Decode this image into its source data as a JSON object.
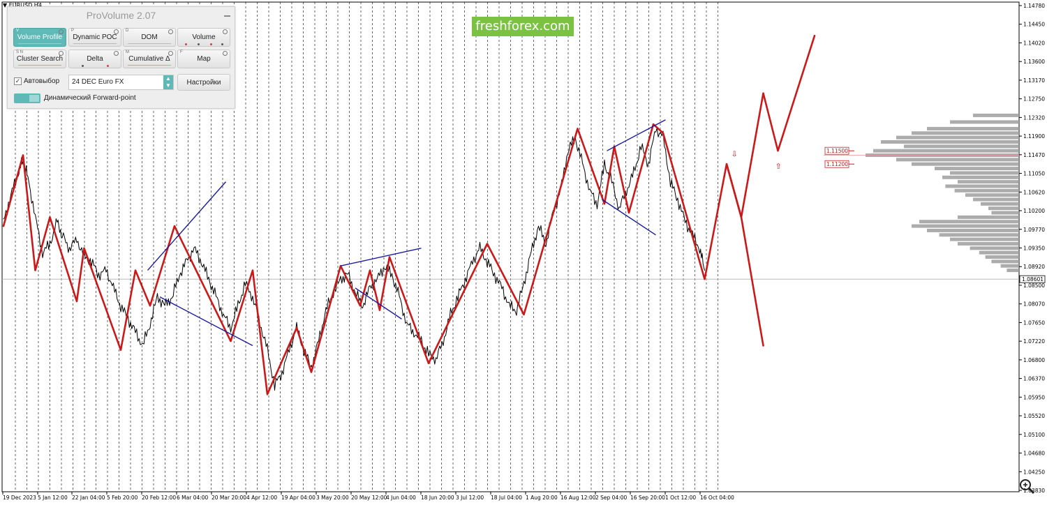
{
  "window": {
    "symbol_label": "▼ EURUSD,H4"
  },
  "brand": {
    "text": "freshforex.com",
    "color": "#7cc242"
  },
  "panel": {
    "title": "ProVolume 2.07",
    "buttons": [
      {
        "label": "Volume Profile",
        "hotkey": "V",
        "active": true
      },
      {
        "label": "Dynamic POC",
        "hotkey": "P",
        "active": false
      },
      {
        "label": "DOM",
        "hotkey": "D",
        "active": false
      },
      {
        "label": "Volume",
        "hotkey": "",
        "active": false
      },
      {
        "label": "Cluster Search",
        "hotkey": "S N",
        "active": false
      },
      {
        "label": "Delta",
        "hotkey": "",
        "active": false
      },
      {
        "label": "Cumulative Δ",
        "hotkey": "M",
        "active": false
      },
      {
        "label": "Map",
        "hotkey": "F",
        "active": false
      }
    ],
    "autoselect_label": "Автовыбор",
    "autoselect_checked": true,
    "contract_value": "24 DEC Euro FX",
    "settings_label": "Настройки",
    "forward_point_label": "Динамический Forward-point",
    "accent_color": "#5fb9b6"
  },
  "chart_data": {
    "type": "line",
    "symbol": "EURUSD",
    "timeframe": "H4",
    "title": "",
    "xlabel": "",
    "ylabel": "",
    "ylim": [
      1.0363,
      1.1478
    ],
    "y_ticks": [
      "1.14780",
      "1.14450",
      "1.14020",
      "1.13600",
      "1.13170",
      "1.12750",
      "1.12320",
      "1.11900",
      "1.11470",
      "1.11050",
      "1.10620",
      "1.10200",
      "1.09770",
      "1.09350",
      "1.08920",
      "1.08500",
      "1.08070",
      "1.07650",
      "1.07220",
      "1.06800",
      "1.06370",
      "1.05950",
      "1.05520",
      "1.05100",
      "1.04680",
      "1.04250",
      "1.03830"
    ],
    "x_ticks": [
      "19 Dec 2023",
      "5 Jan 12:00",
      "22 Jan 04:00",
      "5 Feb 20:00",
      "20 Feb 12:00",
      "6 Mar 04:00",
      "20 Mar 20:00",
      "4 Apr 12:00",
      "19 Apr 04:00",
      "3 May 20:00",
      "20 May 12:00",
      "4 Jun 04:00",
      "18 Jun 20:00",
      "3 Jul 12:00",
      "18 Jul 04:00",
      "1 Aug 20:00",
      "16 Aug 12:00",
      "2 Sep 04:00",
      "16 Sep 20:00",
      "1 Oct 12:00",
      "16 Oct 04:00"
    ],
    "current_price": "1.08601",
    "price_levels": [
      "1.11500",
      "1.11200"
    ],
    "grid": "vertical dashed",
    "series": [
      {
        "role": "price",
        "color": "#000000",
        "points": [
          [
            0,
            1.099
          ],
          [
            3,
            1.105
          ],
          [
            6,
            1.11
          ],
          [
            8,
            1.113
          ],
          [
            10,
            1.109
          ],
          [
            13,
            1.1
          ],
          [
            16,
            1.092
          ],
          [
            19,
            1.094
          ],
          [
            22,
            1.099
          ],
          [
            24,
            1.096
          ],
          [
            27,
            1.093
          ],
          [
            30,
            1.095
          ],
          [
            33,
            1.091
          ],
          [
            36,
            1.09
          ],
          [
            39,
            1.087
          ],
          [
            42,
            1.088
          ],
          [
            45,
            1.084
          ],
          [
            48,
            1.08
          ],
          [
            51,
            1.077
          ],
          [
            54,
            1.074
          ],
          [
            57,
            1.071
          ],
          [
            60,
            1.076
          ],
          [
            63,
            1.082
          ],
          [
            66,
            1.08
          ],
          [
            69,
            1.082
          ],
          [
            72,
            1.087
          ],
          [
            75,
            1.09
          ],
          [
            78,
            1.093
          ],
          [
            81,
            1.09
          ],
          [
            84,
            1.086
          ],
          [
            87,
            1.082
          ],
          [
            90,
            1.078
          ],
          [
            93,
            1.075
          ],
          [
            96,
            1.08
          ],
          [
            99,
            1.085
          ],
          [
            102,
            1.082
          ],
          [
            105,
            1.076
          ],
          [
            108,
            1.07
          ],
          [
            111,
            1.062
          ],
          [
            114,
            1.065
          ],
          [
            117,
            1.07
          ],
          [
            120,
            1.075
          ],
          [
            123,
            1.07
          ],
          [
            126,
            1.066
          ],
          [
            129,
            1.072
          ],
          [
            132,
            1.079
          ],
          [
            135,
            1.083
          ],
          [
            138,
            1.086
          ],
          [
            141,
            1.087
          ],
          [
            144,
            1.083
          ],
          [
            147,
            1.08
          ],
          [
            150,
            1.084
          ],
          [
            153,
            1.086
          ],
          [
            156,
            1.089
          ],
          [
            159,
            1.087
          ],
          [
            162,
            1.082
          ],
          [
            165,
            1.076
          ],
          [
            168,
            1.074
          ],
          [
            171,
            1.072
          ],
          [
            174,
            1.069
          ],
          [
            177,
            1.068
          ],
          [
            180,
            1.072
          ],
          [
            183,
            1.078
          ],
          [
            186,
            1.082
          ],
          [
            189,
            1.086
          ],
          [
            192,
            1.09
          ],
          [
            195,
            1.093
          ],
          [
            198,
            1.09
          ],
          [
            201,
            1.087
          ],
          [
            204,
            1.084
          ],
          [
            207,
            1.08
          ],
          [
            210,
            1.079
          ],
          [
            213,
            1.085
          ],
          [
            216,
            1.092
          ],
          [
            219,
            1.098
          ],
          [
            222,
            1.094
          ],
          [
            225,
            1.101
          ],
          [
            228,
            1.106
          ],
          [
            231,
            1.115
          ],
          [
            234,
            1.118
          ],
          [
            237,
            1.112
          ],
          [
            240,
            1.106
          ],
          [
            243,
            1.103
          ],
          [
            246,
            1.112
          ],
          [
            249,
            1.108
          ],
          [
            252,
            1.102
          ],
          [
            255,
            1.106
          ],
          [
            258,
            1.11
          ],
          [
            261,
            1.116
          ],
          [
            264,
            1.112
          ],
          [
            267,
            1.12
          ],
          [
            270,
            1.118
          ],
          [
            273,
            1.108
          ],
          [
            276,
            1.104
          ],
          [
            279,
            1.099
          ],
          [
            282,
            1.096
          ],
          [
            285,
            1.093
          ],
          [
            287,
            1.088
          ]
        ]
      },
      {
        "role": "red-zigzag",
        "color": "#cc1818",
        "points": [
          [
            0,
            1.098
          ],
          [
            8,
            1.114
          ],
          [
            13,
            1.088
          ],
          [
            19,
            1.1
          ],
          [
            30,
            1.081
          ],
          [
            33,
            1.093
          ],
          [
            48,
            1.07
          ],
          [
            54,
            1.088
          ],
          [
            60,
            1.08
          ],
          [
            70,
            1.098
          ],
          [
            93,
            1.072
          ],
          [
            102,
            1.088
          ],
          [
            108,
            1.06
          ],
          [
            120,
            1.075
          ],
          [
            126,
            1.065
          ],
          [
            138,
            1.089
          ],
          [
            146,
            1.08
          ],
          [
            150,
            1.088
          ],
          [
            154,
            1.079
          ],
          [
            158,
            1.091
          ],
          [
            174,
            1.067
          ],
          [
            198,
            1.094
          ],
          [
            213,
            1.078
          ],
          [
            235,
            1.12
          ],
          [
            246,
            1.103
          ],
          [
            250,
            1.116
          ],
          [
            256,
            1.101
          ],
          [
            266,
            1.121
          ],
          [
            270,
            1.119
          ],
          [
            287,
            1.086
          ],
          [
            296,
            1.112
          ],
          [
            302,
            1.1
          ],
          [
            311,
            1.128
          ],
          [
            317,
            1.115
          ],
          [
            332,
            1.141
          ]
        ]
      },
      {
        "role": "red-alternate-path",
        "color": "#cc1818",
        "points": [
          [
            296,
            1.112
          ],
          [
            302,
            1.1
          ],
          [
            311,
            1.071
          ]
        ]
      },
      {
        "role": "blue-trendlines",
        "color": "#1a1aa0",
        "segments": [
          [
            [
              59,
              1.088
            ],
            [
              91,
              1.108
            ]
          ],
          [
            [
              64,
              1.082
            ],
            [
              102,
              1.071
            ]
          ],
          [
            [
              138,
              1.089
            ],
            [
              171,
              1.093
            ]
          ],
          [
            [
              144,
              1.084
            ],
            [
              163,
              1.077
            ]
          ],
          [
            [
              247,
              1.115
            ],
            [
              271,
              1.122
            ]
          ],
          [
            [
              245,
              1.104
            ],
            [
              267,
              1.096
            ]
          ]
        ]
      }
    ],
    "volume_profile": {
      "color": "#9d9d9d",
      "poc_price": 1.114,
      "bins": [
        [
          1.123,
          0.3
        ],
        [
          1.1215,
          0.45
        ],
        [
          1.12,
          0.6
        ],
        [
          1.119,
          0.7
        ],
        [
          1.118,
          0.8
        ],
        [
          1.117,
          0.9
        ],
        [
          1.116,
          0.75
        ],
        [
          1.115,
          0.95
        ],
        [
          1.114,
          1.0
        ],
        [
          1.113,
          0.8
        ],
        [
          1.112,
          0.7
        ],
        [
          1.111,
          0.55
        ],
        [
          1.11,
          0.45
        ],
        [
          1.109,
          0.5
        ],
        [
          1.108,
          0.4
        ],
        [
          1.107,
          0.48
        ],
        [
          1.106,
          0.42
        ],
        [
          1.105,
          0.35
        ],
        [
          1.104,
          0.3
        ],
        [
          1.103,
          0.25
        ],
        [
          1.102,
          0.2
        ],
        [
          1.101,
          0.18
        ],
        [
          1.1,
          0.4
        ],
        [
          1.099,
          0.65
        ],
        [
          1.098,
          0.7
        ],
        [
          1.097,
          0.6
        ],
        [
          1.096,
          0.52
        ],
        [
          1.095,
          0.45
        ],
        [
          1.094,
          0.4
        ],
        [
          1.093,
          0.32
        ],
        [
          1.092,
          0.26
        ],
        [
          1.091,
          0.22
        ],
        [
          1.09,
          0.18
        ],
        [
          1.089,
          0.12
        ],
        [
          1.088,
          0.08
        ]
      ]
    },
    "annotations": [
      {
        "symbol": "⇩",
        "x": 299,
        "y": 1.1143,
        "color": "#cc1818"
      },
      {
        "symbol": "⇧",
        "x": 317,
        "y": 1.1116,
        "color": "#cc1818"
      }
    ]
  }
}
